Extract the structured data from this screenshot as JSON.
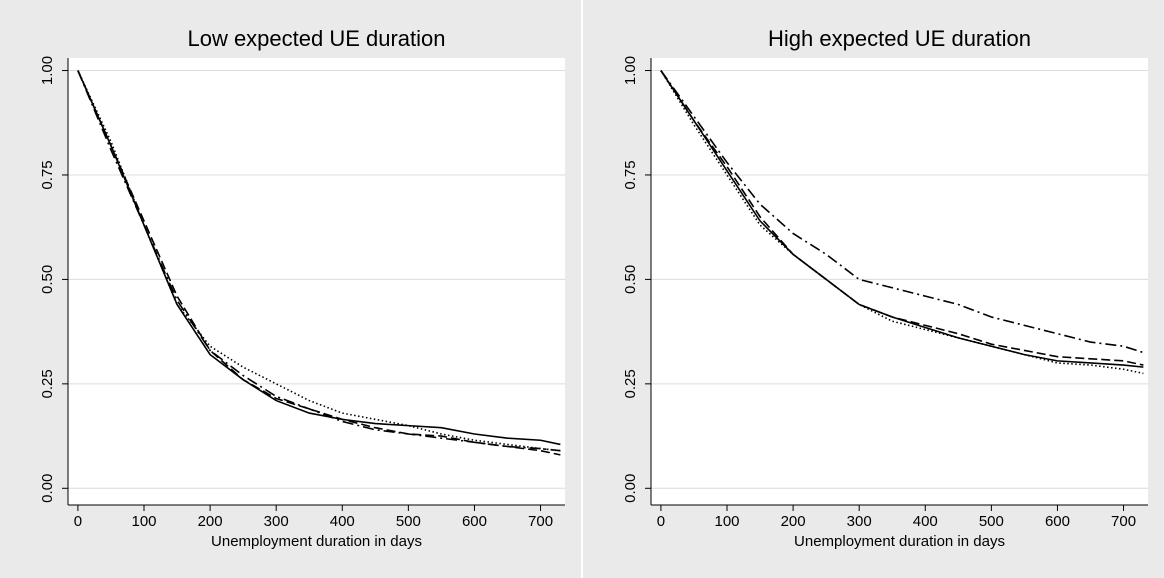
{
  "chart_data": [
    {
      "type": "line",
      "title": "Low expected UE duration",
      "x_label": "Unemployment duration in days",
      "x": [
        0,
        50,
        100,
        150,
        200,
        250,
        300,
        350,
        400,
        450,
        500,
        550,
        600,
        650,
        700,
        730
      ],
      "series": [
        {
          "color": "#000000",
          "dash": "solid",
          "values": [
            1.0,
            0.82,
            0.63,
            0.44,
            0.32,
            0.26,
            0.21,
            0.18,
            0.165,
            0.155,
            0.15,
            0.145,
            0.13,
            0.12,
            0.115,
            0.105
          ]
        },
        {
          "color": "#000000",
          "dash": "dashed",
          "values": [
            1.0,
            0.82,
            0.64,
            0.46,
            0.33,
            0.26,
            0.215,
            0.19,
            0.165,
            0.145,
            0.13,
            0.125,
            0.11,
            0.1,
            0.09,
            0.08
          ]
        },
        {
          "color": "#000000",
          "dash": "dotted",
          "values": [
            1.0,
            0.83,
            0.63,
            0.44,
            0.34,
            0.29,
            0.25,
            0.21,
            0.18,
            0.165,
            0.15,
            0.13,
            0.115,
            0.105,
            0.095,
            0.09
          ]
        },
        {
          "color": "#000000",
          "dash": "dashdot",
          "values": [
            1.0,
            0.81,
            0.63,
            0.45,
            0.33,
            0.27,
            0.22,
            0.19,
            0.16,
            0.14,
            0.13,
            0.12,
            0.11,
            0.1,
            0.095,
            0.09
          ]
        }
      ],
      "xlim": [
        -15,
        737
      ],
      "ylim": [
        -0.04,
        1.03
      ],
      "xticks": [
        0,
        100,
        200,
        300,
        400,
        500,
        600,
        700
      ],
      "yticks": [
        {
          "value": 0,
          "label": "0.00"
        },
        {
          "value": 0.25,
          "label": "0.25"
        },
        {
          "value": 0.5,
          "label": "0.50"
        },
        {
          "value": 0.75,
          "label": "0.75"
        },
        {
          "value": 1,
          "label": "1.00"
        }
      ],
      "grid": true
    },
    {
      "type": "line",
      "title": "High expected UE duration",
      "x_label": "Unemployment duration in days",
      "x": [
        0,
        50,
        100,
        150,
        200,
        250,
        300,
        350,
        400,
        450,
        500,
        550,
        600,
        650,
        700,
        730
      ],
      "series": [
        {
          "color": "#000000",
          "dash": "solid",
          "values": [
            1.0,
            0.88,
            0.76,
            0.64,
            0.56,
            0.5,
            0.44,
            0.41,
            0.385,
            0.36,
            0.34,
            0.32,
            0.305,
            0.3,
            0.295,
            0.29
          ]
        },
        {
          "color": "#000000",
          "dash": "dashed",
          "values": [
            1.0,
            0.88,
            0.77,
            0.65,
            0.56,
            0.5,
            0.44,
            0.41,
            0.39,
            0.37,
            0.345,
            0.33,
            0.315,
            0.31,
            0.305,
            0.295
          ]
        },
        {
          "color": "#000000",
          "dash": "dotted",
          "values": [
            1.0,
            0.87,
            0.75,
            0.63,
            0.56,
            0.5,
            0.44,
            0.4,
            0.38,
            0.36,
            0.34,
            0.32,
            0.3,
            0.295,
            0.285,
            0.275
          ]
        },
        {
          "color": "#000000",
          "dash": "dashdot",
          "values": [
            1.0,
            0.89,
            0.78,
            0.68,
            0.61,
            0.56,
            0.5,
            0.48,
            0.46,
            0.44,
            0.41,
            0.39,
            0.37,
            0.35,
            0.34,
            0.325
          ]
        }
      ],
      "xlim": [
        -15,
        737
      ],
      "ylim": [
        -0.04,
        1.03
      ],
      "xticks": [
        0,
        100,
        200,
        300,
        400,
        500,
        600,
        700
      ],
      "yticks": [
        {
          "value": 0,
          "label": "0.00"
        },
        {
          "value": 0.25,
          "label": "0.25"
        },
        {
          "value": 0.5,
          "label": "0.50"
        },
        {
          "value": 0.75,
          "label": "0.75"
        },
        {
          "value": 1,
          "label": "1.00"
        }
      ],
      "grid": true
    }
  ]
}
